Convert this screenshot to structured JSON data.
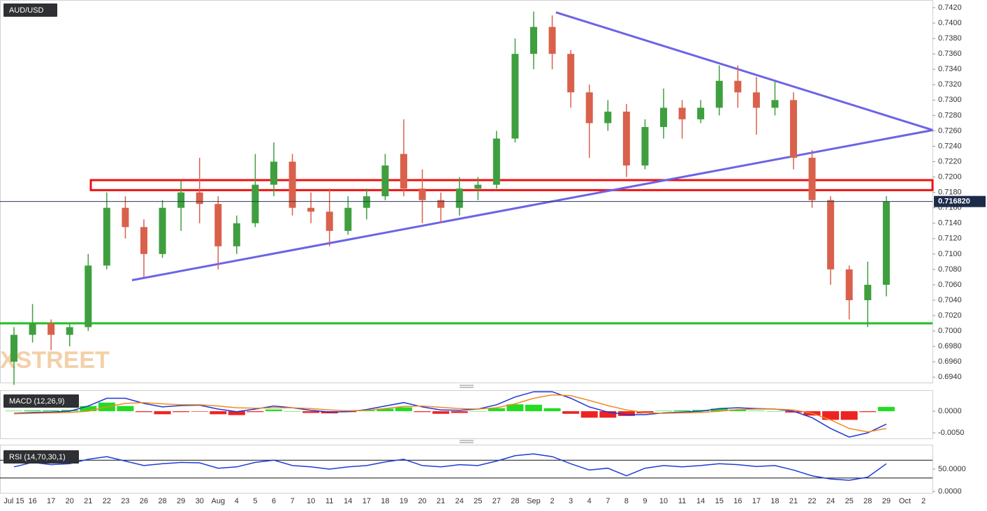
{
  "chart_data": {
    "type": "candlestick",
    "symbol": "AUD/USD",
    "watermark": "FXSTREET",
    "categories": [
      "Jul 15",
      "16",
      "17",
      "20",
      "21",
      "22",
      "23",
      "26",
      "28",
      "29",
      "30",
      "Aug",
      "4",
      "5",
      "6",
      "7",
      "10",
      "11",
      "14",
      "17",
      "18",
      "19",
      "20",
      "21",
      "24",
      "25",
      "27",
      "28",
      "Sep",
      "2",
      "3",
      "4",
      "7",
      "8",
      "9",
      "10",
      "11",
      "14",
      "15",
      "16",
      "17",
      "18",
      "21",
      "22",
      "24",
      "25",
      "28",
      "29",
      "Oct",
      "2"
    ],
    "open": [
      0.696,
      0.6995,
      0.701,
      0.6995,
      0.7005,
      0.7085,
      0.716,
      0.7135,
      0.71,
      0.716,
      0.718,
      0.7165,
      0.711,
      0.714,
      0.719,
      0.722,
      0.716,
      0.7155,
      0.713,
      0.716,
      0.7175,
      0.723,
      0.7185,
      0.717,
      0.716,
      0.7185,
      0.719,
      0.725,
      0.736,
      0.7395,
      0.736,
      0.731,
      0.727,
      0.7285,
      0.7215,
      0.7265,
      0.729,
      0.7275,
      0.729,
      0.7325,
      0.731,
      0.729,
      0.73,
      0.7225,
      0.717,
      0.708,
      0.704,
      0.706,
      null,
      null
    ],
    "high": [
      0.7005,
      0.7035,
      0.7015,
      0.701,
      0.71,
      0.718,
      0.7175,
      0.7145,
      0.717,
      0.7195,
      0.7225,
      0.7175,
      0.715,
      0.723,
      0.7245,
      0.723,
      0.718,
      0.7185,
      0.7175,
      0.7185,
      0.723,
      0.7275,
      0.721,
      0.718,
      0.72,
      0.72,
      0.726,
      0.738,
      0.7415,
      0.741,
      0.7365,
      0.732,
      0.73,
      0.7295,
      0.7275,
      0.7315,
      0.73,
      0.73,
      0.7345,
      0.7345,
      0.733,
      0.7325,
      0.731,
      0.7235,
      0.7175,
      0.7085,
      0.709,
      0.7175,
      null,
      null
    ],
    "low": [
      0.693,
      0.6985,
      0.6975,
      0.698,
      0.7,
      0.708,
      0.712,
      0.707,
      0.7095,
      0.713,
      0.714,
      0.708,
      0.71,
      0.7135,
      0.7175,
      0.715,
      0.714,
      0.711,
      0.7125,
      0.7145,
      0.717,
      0.7175,
      0.714,
      0.714,
      0.715,
      0.717,
      0.7185,
      0.7245,
      0.734,
      0.734,
      0.729,
      0.7225,
      0.726,
      0.72,
      0.721,
      0.725,
      0.725,
      0.727,
      0.728,
      0.729,
      0.7255,
      0.728,
      0.721,
      0.716,
      0.706,
      0.7015,
      0.7005,
      0.7045,
      null,
      null
    ],
    "close": [
      0.6995,
      0.701,
      0.6995,
      0.7005,
      0.7085,
      0.716,
      0.7135,
      0.71,
      0.716,
      0.718,
      0.7165,
      0.711,
      0.714,
      0.719,
      0.722,
      0.716,
      0.7155,
      0.713,
      0.716,
      0.7175,
      0.7215,
      0.7185,
      0.717,
      0.716,
      0.7185,
      0.719,
      0.725,
      0.736,
      0.7395,
      0.736,
      0.731,
      0.727,
      0.7285,
      0.7215,
      0.7265,
      0.729,
      0.7275,
      0.729,
      0.7325,
      0.731,
      0.729,
      0.73,
      0.7225,
      0.717,
      0.708,
      0.704,
      0.706,
      0.7168,
      null,
      null
    ],
    "up_color": "#3f9f3f",
    "down_color": "#d9614c",
    "ylim": [
      0.6933,
      0.743
    ],
    "yticks": [
      {
        "value": 0.742,
        "label": "0.7420"
      },
      {
        "value": 0.74,
        "label": "0.7400"
      },
      {
        "value": 0.738,
        "label": "0.7380"
      },
      {
        "value": 0.736,
        "label": "0.7360"
      },
      {
        "value": 0.734,
        "label": "0.7340"
      },
      {
        "value": 0.732,
        "label": "0.7320"
      },
      {
        "value": 0.73,
        "label": "0.7300"
      },
      {
        "value": 0.728,
        "label": "0.7280"
      },
      {
        "value": 0.726,
        "label": "0.7260"
      },
      {
        "value": 0.724,
        "label": "0.7240"
      },
      {
        "value": 0.722,
        "label": "0.7220"
      },
      {
        "value": 0.72,
        "label": "0.7200"
      },
      {
        "value": 0.718,
        "label": "0.7180"
      },
      {
        "value": 0.716,
        "label": "0.7160"
      },
      {
        "value": 0.714,
        "label": "0.7140"
      },
      {
        "value": 0.712,
        "label": "0.7120"
      },
      {
        "value": 0.71,
        "label": "0.7100"
      },
      {
        "value": 0.708,
        "label": "0.7080"
      },
      {
        "value": 0.706,
        "label": "0.7060"
      },
      {
        "value": 0.704,
        "label": "0.7040"
      },
      {
        "value": 0.702,
        "label": "0.7020"
      },
      {
        "value": 0.7,
        "label": "0.7000"
      },
      {
        "value": 0.698,
        "label": "0.6980"
      },
      {
        "value": 0.696,
        "label": "0.6960"
      },
      {
        "value": 0.694,
        "label": "0.6940"
      }
    ],
    "last_price": {
      "value": 0.71682,
      "label": "0.716820"
    },
    "horizontal_lines": [
      {
        "value": 0.701,
        "color": "#1fbf1f"
      }
    ],
    "zones": [
      {
        "from": 0.7183,
        "to": 0.7196,
        "start": 4.14,
        "color": "#ee1111"
      }
    ],
    "trendlines": [
      {
        "start": [
          6.36,
          0.7066
        ],
        "end": [
          49.5,
          0.7261
        ],
        "color": "#6b63e8"
      },
      {
        "start": [
          29.2,
          0.7414
        ],
        "end": [
          49.5,
          0.7261
        ],
        "color": "#6b63e8"
      }
    ],
    "macd": {
      "title": "MACD (12,26,9)",
      "macd": [
        -0.0005,
        -0.0003,
        -0.0002,
        0,
        0.0012,
        0.003,
        0.003,
        0.0018,
        0.001,
        0.0013,
        0.0014,
        0.0005,
        -0.0001,
        0.0005,
        0.0012,
        0.0008,
        0.0002,
        -0.0002,
        -0.0001,
        0.0004,
        0.0012,
        0.002,
        0.001,
        0.0003,
        0.0002,
        0.0005,
        0.0015,
        0.0033,
        0.0045,
        0.0045,
        0.003,
        0.001,
        -0.0002,
        -0.0008,
        -0.0008,
        -0.0004,
        -0.0002,
        0,
        0.0006,
        0.0008,
        0.0006,
        0.0005,
        0,
        -0.0015,
        -0.004,
        -0.006,
        -0.005,
        -0.003,
        null,
        null
      ],
      "signal": [
        -0.0006,
        -0.0005,
        -0.0004,
        -0.0003,
        0,
        0.001,
        0.0018,
        0.002,
        0.0017,
        0.0015,
        0.0015,
        0.0012,
        0.0008,
        0.0007,
        0.0008,
        0.0008,
        0.0006,
        0.0003,
        0.0001,
        0.0002,
        0.0006,
        0.0011,
        0.0012,
        0.0009,
        0.0006,
        0.0005,
        0.0008,
        0.0017,
        0.003,
        0.0038,
        0.0036,
        0.0025,
        0.0013,
        0.0003,
        -0.0003,
        -0.0005,
        -0.0004,
        -0.0003,
        0,
        0.0004,
        0.0005,
        0.0005,
        0.0003,
        -0.0005,
        -0.002,
        -0.004,
        -0.0048,
        -0.004,
        null,
        null
      ],
      "histogram": [
        0.0001,
        0.0002,
        0.0002,
        0.0003,
        0.0012,
        0.002,
        0.0012,
        -0.0002,
        -0.0007,
        -0.0002,
        -0.0001,
        -0.0007,
        -0.0009,
        -0.0002,
        0.0004,
        0,
        -0.0004,
        -0.0005,
        -0.0002,
        0.0002,
        0.0006,
        0.0009,
        -0.0002,
        -0.0006,
        -0.0004,
        0,
        0.0007,
        0.0016,
        0.0015,
        0.0007,
        -0.0006,
        -0.0015,
        -0.0015,
        -0.0011,
        -0.0005,
        0.0001,
        0.0002,
        0.0003,
        0.0006,
        0.0004,
        0.0001,
        0,
        -0.0003,
        -0.001,
        -0.002,
        -0.002,
        -0.0002,
        0.001,
        null,
        null
      ],
      "macd_color": "#1f35d6",
      "signal_color": "#f08a24",
      "up_color": "#22dd22",
      "down_color": "#ee2222",
      "ylim": [
        -0.0063,
        0.0047
      ],
      "yticks": [
        {
          "value": 0,
          "label": "0.0000"
        },
        {
          "value": -0.005,
          "label": "-0.0050"
        }
      ]
    },
    "rsi": {
      "title": "RSI (14,70,30,1)",
      "values": [
        55,
        65,
        60,
        62,
        72,
        78,
        68,
        58,
        62,
        65,
        64,
        52,
        55,
        65,
        70,
        58,
        55,
        50,
        55,
        58,
        66,
        72,
        58,
        55,
        60,
        58,
        68,
        80,
        84,
        78,
        62,
        48,
        52,
        35,
        52,
        58,
        55,
        58,
        62,
        60,
        56,
        58,
        48,
        35,
        28,
        25,
        32,
        62,
        null,
        null
      ],
      "color": "#1e3cd6",
      "levels": [
        70,
        30
      ],
      "ylim": [
        0,
        100
      ],
      "yticks": [
        {
          "value": 50,
          "label": "50.0000"
        },
        {
          "value": 0,
          "label": "0.0000"
        }
      ]
    }
  }
}
